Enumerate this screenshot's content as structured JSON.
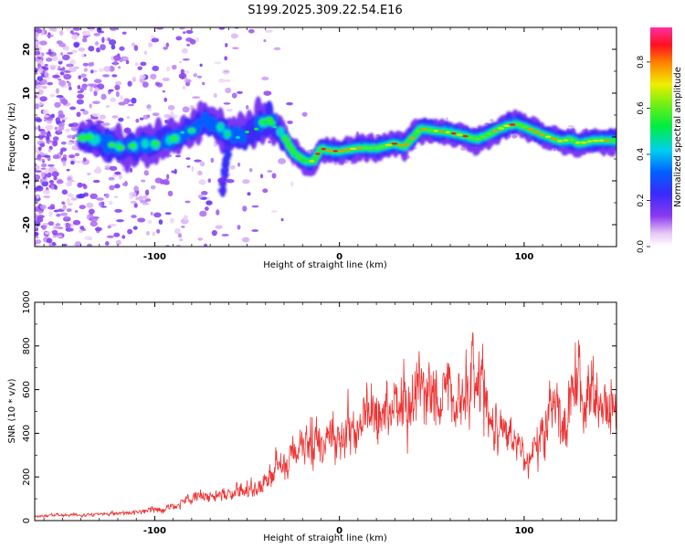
{
  "title": "S199.2025.309.22.54.E16",
  "chart_data": [
    {
      "type": "heatmap",
      "title": "S199.2025.309.22.54.E16",
      "xlabel": "Height of straight line (km)",
      "ylabel": "Frequency (Hz)",
      "xlim": [
        -165,
        150
      ],
      "ylim": [
        -25,
        25
      ],
      "xticks": [
        -100,
        0,
        100
      ],
      "yticks": [
        -20,
        -10,
        0,
        10,
        20
      ],
      "colorbar": {
        "label": "Normalized spectral amplitude",
        "range": [
          0,
          0.95
        ],
        "ticks": [
          0.0,
          0.2,
          0.4,
          0.6,
          0.8
        ],
        "tick_labels": [
          "0.0",
          "0.2",
          "0.4",
          "0.6",
          "0.8"
        ]
      },
      "ridge": {
        "x": [
          -135,
          -120,
          -110,
          -100,
          -90,
          -80,
          -72,
          -64,
          -58,
          -52,
          -45,
          -38,
          -33,
          -29,
          -27,
          -25,
          -22,
          -18,
          -14,
          -12,
          -10,
          -7,
          -4,
          0,
          10,
          20,
          30,
          35,
          40,
          44,
          50,
          60,
          70,
          75,
          80,
          85,
          90,
          96,
          102,
          110,
          120,
          125,
          130,
          135,
          140,
          148
        ],
        "y": [
          0,
          -2.5,
          -2,
          -1.5,
          -0.5,
          1.5,
          3.5,
          2,
          0,
          0.5,
          2.5,
          4,
          1.5,
          -0.5,
          -2,
          -3.5,
          -4.5,
          -5.5,
          -5.5,
          -4,
          -2.5,
          -3,
          -3.2,
          -3.2,
          -2.5,
          -2.5,
          -1.5,
          -2.2,
          0,
          2,
          1.5,
          1,
          0,
          -0.5,
          0.5,
          1.5,
          2.5,
          3,
          2,
          0.5,
          -1,
          -0.5,
          -1.5,
          -1,
          -0.8,
          -0.8
        ]
      }
    },
    {
      "type": "line",
      "xlabel": "Height of straight line (km)",
      "ylabel": "SNR (10 * v/v)",
      "xlim": [
        -165,
        150
      ],
      "ylim": [
        0,
        1000
      ],
      "xticks": [
        -100,
        0,
        100
      ],
      "yticks": [
        0,
        200,
        400,
        600,
        800,
        1000
      ],
      "color": "#ee3333",
      "series": [
        {
          "name": "SNR",
          "x": [
            -165,
            -155,
            -145,
            -135,
            -125,
            -115,
            -105,
            -95,
            -85,
            -75,
            -65,
            -55,
            -45,
            -40,
            -35,
            -32,
            -30,
            -28,
            -25,
            -20,
            -15,
            -10,
            -5,
            0,
            5,
            10,
            15,
            20,
            25,
            30,
            35,
            40,
            45,
            50,
            55,
            60,
            65,
            70,
            75,
            78,
            82,
            85,
            90,
            95,
            100,
            105,
            110,
            115,
            120,
            125,
            128,
            132,
            135,
            140,
            145,
            150
          ],
          "values": [
            20,
            25,
            25,
            30,
            30,
            35,
            45,
            55,
            80,
            110,
            120,
            130,
            150,
            180,
            230,
            260,
            250,
            270,
            320,
            330,
            380,
            340,
            380,
            350,
            400,
            420,
            470,
            480,
            520,
            540,
            560,
            580,
            600,
            590,
            570,
            600,
            560,
            590,
            720,
            600,
            450,
            420,
            440,
            380,
            300,
            330,
            420,
            560,
            460,
            540,
            700,
            500,
            620,
            560,
            500,
            520
          ]
        }
      ]
    }
  ]
}
